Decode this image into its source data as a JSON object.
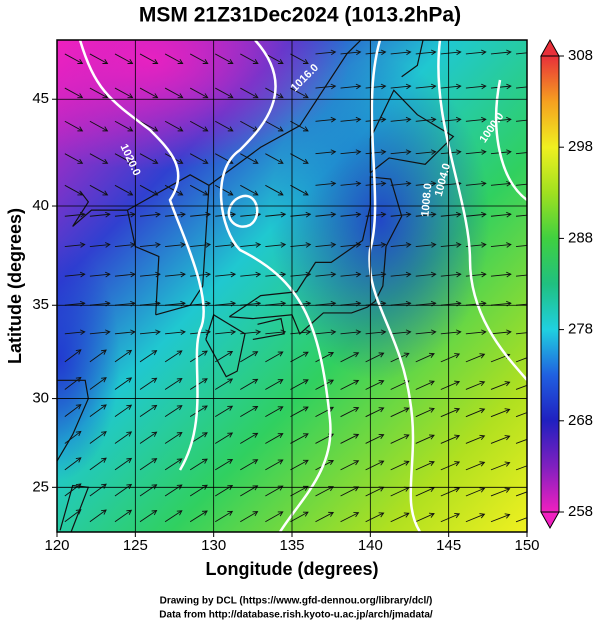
{
  "chart_data": {
    "type": "map",
    "title": "MSM 21Z31Dec2024 (1013.2hPa)",
    "x_label": "Longitude (degrees)",
    "y_label": "Latitude (degrees)",
    "projection": "mercator",
    "xlim": [
      120,
      150
    ],
    "ylim": [
      22.4,
      47.6
    ],
    "xticks": [
      120,
      125,
      130,
      135,
      140,
      145,
      150
    ],
    "yticks": [
      25,
      30,
      35,
      40,
      45
    ],
    "grid": true,
    "contour_labels": [
      "1020.0",
      "1016.0",
      "1008.0",
      "1004.0",
      "1000.0"
    ],
    "colorbar": {
      "lim": [
        258,
        308
      ],
      "ticks": [
        258,
        268,
        278,
        288,
        298,
        308
      ],
      "colors": [
        "#f020c0",
        "#8020c0",
        "#2020c0",
        "#2060e0",
        "#20d0e0",
        "#20c080",
        "#40d040",
        "#a0e020",
        "#f0f020",
        "#f5a020",
        "#e8303a"
      ]
    },
    "credits": [
      "Drawing by DCL (https://www.gfd-dennou.org/library/dcl/)",
      "Data from http://database.rish.kyoto-u.ac.jp/arch/jmadata/"
    ]
  }
}
